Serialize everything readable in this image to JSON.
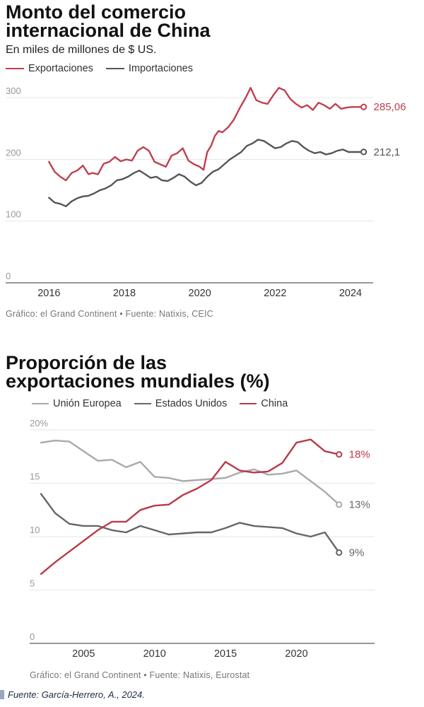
{
  "chart_data": [
    {
      "type": "line",
      "title": "Monto del comercio internacional de China",
      "subtitle": "En miles de millones de $ US.",
      "ylim": [
        0,
        330
      ],
      "xlim": [
        2015.6,
        2024.6
      ],
      "yticks": [
        0,
        100,
        200,
        300
      ],
      "xticks": [
        2016,
        2018,
        2020,
        2022,
        2024
      ],
      "legend_position": "top-left",
      "grid": true,
      "series": [
        {
          "name": "Exportaciones",
          "color": "#c0404f",
          "end_label": "285,06",
          "x": [
            2016.0,
            2016.15,
            2016.3,
            2016.45,
            2016.6,
            2016.75,
            2016.9,
            2017.05,
            2017.15,
            2017.3,
            2017.45,
            2017.6,
            2017.75,
            2017.9,
            2018.05,
            2018.2,
            2018.35,
            2018.5,
            2018.65,
            2018.8,
            2018.95,
            2019.1,
            2019.25,
            2019.4,
            2019.55,
            2019.7,
            2019.85,
            2020.0,
            2020.1,
            2020.2,
            2020.3,
            2020.4,
            2020.5,
            2020.6,
            2020.75,
            2020.9,
            2021.05,
            2021.2,
            2021.35,
            2021.5,
            2021.65,
            2021.8,
            2021.95,
            2022.1,
            2022.25,
            2022.4,
            2022.55,
            2022.7,
            2022.85,
            2023.0,
            2023.15,
            2023.3,
            2023.45,
            2023.6,
            2023.75,
            2023.9,
            2024.05,
            2024.2,
            2024.35
          ],
          "y": [
            196,
            180,
            172,
            166,
            178,
            182,
            190,
            176,
            178,
            176,
            193,
            196,
            204,
            197,
            200,
            198,
            214,
            220,
            214,
            196,
            192,
            188,
            206,
            210,
            218,
            198,
            192,
            188,
            183,
            212,
            222,
            238,
            246,
            244,
            252,
            264,
            282,
            298,
            316,
            296,
            292,
            290,
            304,
            316,
            312,
            298,
            290,
            284,
            288,
            280,
            292,
            288,
            282,
            290,
            282,
            284,
            285,
            285,
            285.06
          ]
        },
        {
          "name": "Importaciones",
          "color": "#555555",
          "end_label": "212,1",
          "x": [
            2016.0,
            2016.15,
            2016.3,
            2016.45,
            2016.6,
            2016.75,
            2016.9,
            2017.05,
            2017.2,
            2017.35,
            2017.5,
            2017.65,
            2017.8,
            2017.95,
            2018.1,
            2018.25,
            2018.4,
            2018.55,
            2018.7,
            2018.85,
            2019.0,
            2019.15,
            2019.3,
            2019.45,
            2019.6,
            2019.75,
            2019.9,
            2020.05,
            2020.2,
            2020.35,
            2020.5,
            2020.65,
            2020.8,
            2020.95,
            2021.1,
            2021.25,
            2021.4,
            2021.55,
            2021.7,
            2021.85,
            2022.0,
            2022.15,
            2022.3,
            2022.45,
            2022.6,
            2022.75,
            2022.9,
            2023.05,
            2023.2,
            2023.35,
            2023.5,
            2023.65,
            2023.8,
            2023.95,
            2024.1,
            2024.25,
            2024.35
          ],
          "y": [
            138,
            130,
            128,
            124,
            132,
            137,
            140,
            141,
            145,
            150,
            153,
            158,
            166,
            168,
            172,
            178,
            182,
            176,
            170,
            172,
            166,
            165,
            170,
            176,
            172,
            164,
            158,
            162,
            172,
            180,
            184,
            192,
            200,
            206,
            212,
            222,
            226,
            232,
            230,
            224,
            218,
            220,
            226,
            230,
            228,
            220,
            214,
            210,
            212,
            208,
            210,
            214,
            216,
            212,
            212,
            212,
            212.1
          ]
        }
      ]
    },
    {
      "type": "line",
      "title": "Proporción de las exportaciones mundiales (%)",
      "ylim": [
        0,
        20
      ],
      "xlim": [
        2001.5,
        2025.5
      ],
      "yticks": [
        0,
        5,
        10,
        15,
        20
      ],
      "ytick_labels": [
        "0",
        "5",
        "10",
        "15",
        "20%"
      ],
      "xticks": [
        2005,
        2010,
        2015,
        2020
      ],
      "legend_position": "top-left",
      "grid": true,
      "series": [
        {
          "name": "Unión Europea",
          "color": "#aaaaaa",
          "end_label": "13%",
          "x": [
            2002,
            2003,
            2004,
            2005,
            2006,
            2007,
            2008,
            2009,
            2010,
            2011,
            2012,
            2013,
            2014,
            2015,
            2016,
            2017,
            2018,
            2019,
            2020,
            2021,
            2022,
            2023
          ],
          "y": [
            18.8,
            19.0,
            18.9,
            18.0,
            17.1,
            17.2,
            16.5,
            17.0,
            15.6,
            15.5,
            15.2,
            15.3,
            15.4,
            15.5,
            16.0,
            16.3,
            15.8,
            15.9,
            16.2,
            15.2,
            14.2,
            13.0
          ]
        },
        {
          "name": "Estados Unidos",
          "color": "#666666",
          "end_label": "9%",
          "x": [
            2002,
            2003,
            2004,
            2005,
            2006,
            2007,
            2008,
            2009,
            2010,
            2011,
            2012,
            2013,
            2014,
            2015,
            2016,
            2017,
            2018,
            2019,
            2020,
            2021,
            2022,
            2023
          ],
          "y": [
            14.0,
            12.2,
            11.2,
            11.0,
            11.0,
            10.6,
            10.4,
            11.0,
            10.6,
            10.2,
            10.3,
            10.4,
            10.4,
            10.8,
            11.3,
            11.0,
            10.9,
            10.8,
            10.3,
            10.0,
            10.4,
            8.5
          ]
        },
        {
          "name": "China",
          "color": "#b93a4a",
          "end_label": "18%",
          "x": [
            2002,
            2003,
            2004,
            2005,
            2006,
            2007,
            2008,
            2009,
            2010,
            2011,
            2012,
            2013,
            2014,
            2015,
            2016,
            2017,
            2018,
            2019,
            2020,
            2021,
            2022,
            2023
          ],
          "y": [
            6.5,
            7.6,
            8.6,
            9.6,
            10.6,
            11.4,
            11.4,
            12.5,
            12.9,
            13.0,
            13.9,
            14.5,
            15.3,
            17.0,
            16.2,
            16.0,
            16.1,
            16.9,
            18.8,
            19.1,
            18.0,
            17.7
          ]
        }
      ]
    }
  ],
  "chart1": {
    "title_line1": "Monto del comercio",
    "title_line2": "internacional de China",
    "subtitle": "En miles de millones de $ US.",
    "legend": [
      "Exportaciones",
      "Importaciones"
    ],
    "source": "Gráfico: el Grand Continent • Fuente: Natixis, CEIC"
  },
  "chart2": {
    "title_line1": "Proporción de las",
    "title_line2": "exportaciones mundiales (%)",
    "legend": [
      "Unión Europea",
      "Estados Unidos",
      "China"
    ],
    "source": "Gráfico: el Grand Continent • Fuente: Natixis, Eurostat"
  },
  "footnote": "Fuente: García-Herrero, A., 2024."
}
